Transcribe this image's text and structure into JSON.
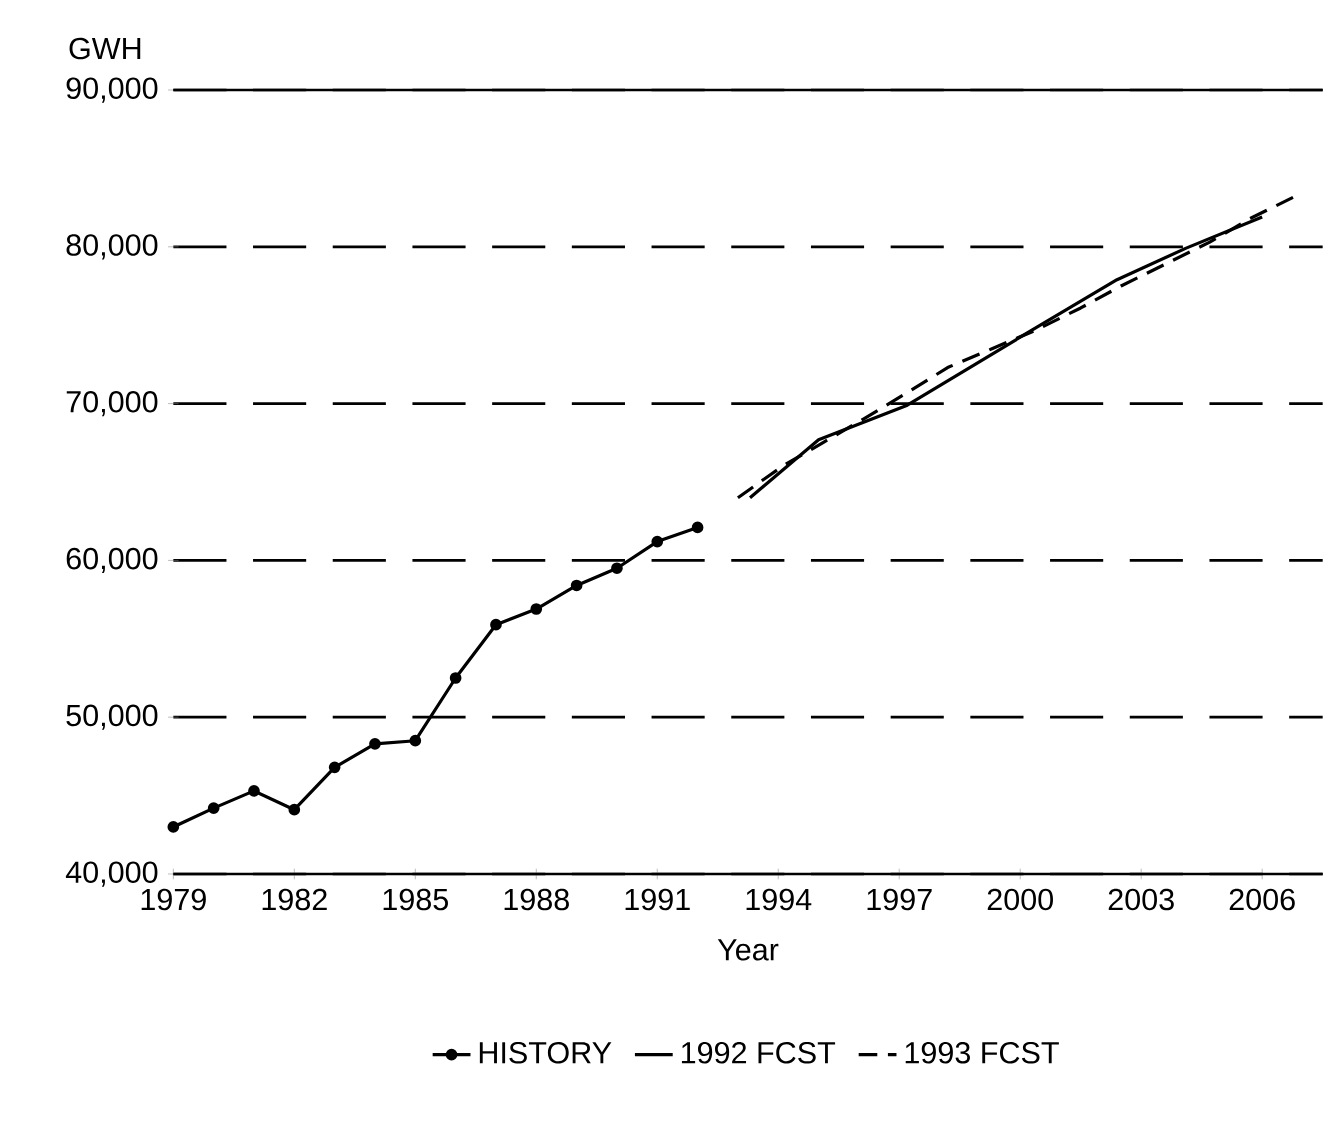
{
  "chart_data": {
    "type": "line",
    "xlabel": "Year",
    "ylabel": "GWH",
    "xlim": [
      1979,
      2007.5
    ],
    "ylim": [
      40000,
      90000
    ],
    "xticks": [
      1979,
      1982,
      1985,
      1988,
      1991,
      1994,
      1997,
      2000,
      2003,
      2006
    ],
    "yticks": [
      {
        "value": 40000,
        "label": "40,000"
      },
      {
        "value": 50000,
        "label": "50,000"
      },
      {
        "value": 60000,
        "label": "60,000"
      },
      {
        "value": 70000,
        "label": "70,000"
      },
      {
        "value": 80000,
        "label": "80,000"
      },
      {
        "value": 90000,
        "label": "90,000"
      }
    ],
    "grid": "y",
    "legend": "bottom",
    "series": [
      {
        "name": "HISTORY",
        "color": "#000000",
        "marker": "circle",
        "line_style": "solid",
        "x": [
          1979,
          1980,
          1981,
          1982,
          1983,
          1984,
          1985,
          1986,
          1987,
          1988,
          1989,
          1990,
          1991,
          1992
        ],
        "values": [
          43000,
          44200,
          45300,
          44100,
          46800,
          48300,
          48500,
          52500,
          55900,
          56900,
          58400,
          59500,
          61200,
          62100
        ]
      },
      {
        "name": "1992 FCST",
        "color": "#000000",
        "marker": "none",
        "line_style": "solid",
        "x": [
          1993.3,
          1995,
          1997.2,
          2000.3,
          2002.4,
          2004.1,
          2006
        ],
        "values": [
          64000,
          67700,
          69900,
          74700,
          77900,
          79900,
          81900
        ]
      },
      {
        "name": "1993 FCST",
        "color": "#000000",
        "marker": "none",
        "line_style": "dashed",
        "x": [
          1993,
          1994.1,
          1995.1,
          1996.1,
          1997.2,
          1998.2,
          1999.3,
          2000.4,
          2001.5,
          2002.5,
          2003.6,
          2004.7,
          2005.7,
          2006.8
        ],
        "values": [
          64000,
          66000,
          67500,
          69000,
          70700,
          72300,
          73500,
          74700,
          76100,
          77500,
          78900,
          80300,
          81800,
          83200
        ]
      }
    ]
  }
}
